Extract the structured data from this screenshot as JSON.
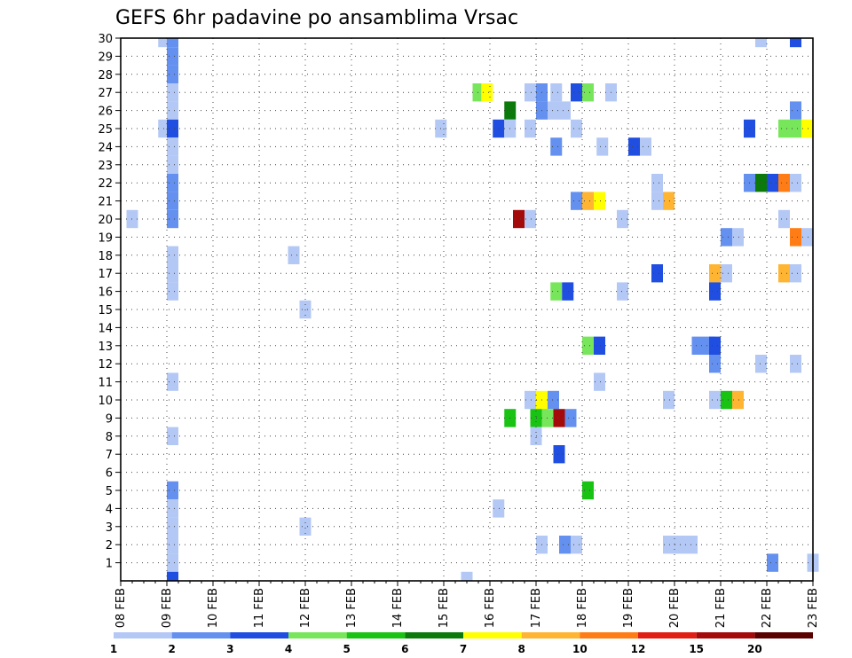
{
  "chart_data": {
    "type": "heatmap",
    "title": "GEFS 6hr padavine po ansamblima Vrsac",
    "xlabel": "",
    "ylabel": "",
    "x_tick_labels": [
      "08 FEB",
      "09 FEB",
      "10 FEB",
      "11 FEB",
      "12 FEB",
      "13 FEB",
      "14 FEB",
      "15 FEB",
      "16 FEB",
      "17 FEB",
      "18 FEB",
      "19 FEB",
      "20 FEB",
      "21 FEB",
      "22 FEB",
      "23 FEB"
    ],
    "y_tick_labels": [
      "1",
      "2",
      "3",
      "4",
      "5",
      "6",
      "7",
      "8",
      "9",
      "10",
      "11",
      "12",
      "13",
      "14",
      "15",
      "16",
      "17",
      "18",
      "19",
      "20",
      "21",
      "22",
      "23",
      "24",
      "25",
      "26",
      "27",
      "28",
      "29",
      "30"
    ],
    "ylim": [
      0,
      30
    ],
    "x_steps_per_day": 4,
    "x_range_steps": [
      0,
      60
    ],
    "grid": true,
    "color_levels": [
      1,
      2,
      3,
      4,
      5,
      6,
      7,
      8,
      10,
      12,
      15,
      20
    ],
    "colors": [
      "#b4c8f5",
      "#6490ef",
      "#1f4ee0",
      "#78e65a",
      "#19c314",
      "#0b7a0b",
      "#ffff00",
      "#ffb432",
      "#ff7d14",
      "#e01e14",
      "#a50a0a",
      "#5a0000"
    ],
    "legend_labels": [
      "1",
      "2",
      "3",
      "4",
      "5",
      "6",
      "7",
      "8",
      "10",
      "12",
      "15",
      "20"
    ],
    "legend_placement": "bottom",
    "cells": [
      {
        "m": 30,
        "t": 3.25,
        "c": 0
      },
      {
        "m": 30,
        "t": 4,
        "c": 1
      },
      {
        "m": 30,
        "t": 55,
        "c": 0
      },
      {
        "m": 30,
        "t": 58,
        "c": 2
      },
      {
        "m": 29,
        "t": 4,
        "c": 1
      },
      {
        "m": 28,
        "t": 4,
        "c": 1
      },
      {
        "m": 27,
        "t": 4,
        "c": 0
      },
      {
        "m": 27,
        "t": 30.5,
        "c": 3
      },
      {
        "m": 27,
        "t": 31.25,
        "c": 6
      },
      {
        "m": 27,
        "t": 35,
        "c": 0
      },
      {
        "m": 27,
        "t": 36,
        "c": 1
      },
      {
        "m": 27,
        "t": 37.25,
        "c": 0
      },
      {
        "m": 27,
        "t": 39,
        "c": 2
      },
      {
        "m": 27,
        "t": 40,
        "c": 3
      },
      {
        "m": 27,
        "t": 42,
        "c": 0
      },
      {
        "m": 26,
        "t": 4,
        "c": 0
      },
      {
        "m": 26,
        "t": 33.25,
        "c": 5
      },
      {
        "m": 26,
        "t": 36,
        "c": 1
      },
      {
        "m": 26,
        "t": 37,
        "c": 0
      },
      {
        "m": 26,
        "t": 38,
        "c": 0
      },
      {
        "m": 26,
        "t": 58,
        "c": 1
      },
      {
        "m": 25,
        "t": 3.25,
        "c": 0
      },
      {
        "m": 25,
        "t": 4,
        "c": 2
      },
      {
        "m": 25,
        "t": 27.25,
        "c": 0
      },
      {
        "m": 25,
        "t": 32.25,
        "c": 2
      },
      {
        "m": 25,
        "t": 33.25,
        "c": 0
      },
      {
        "m": 25,
        "t": 35,
        "c": 0
      },
      {
        "m": 25,
        "t": 39,
        "c": 0
      },
      {
        "m": 25,
        "t": 54,
        "c": 2
      },
      {
        "m": 25,
        "t": 57,
        "c": 3
      },
      {
        "m": 25,
        "t": 58,
        "c": 3
      },
      {
        "m": 25,
        "t": 59,
        "c": 6
      },
      {
        "m": 24,
        "t": 4,
        "c": 0
      },
      {
        "m": 24,
        "t": 37.25,
        "c": 1
      },
      {
        "m": 24,
        "t": 41.25,
        "c": 0
      },
      {
        "m": 24,
        "t": 44,
        "c": 2
      },
      {
        "m": 24,
        "t": 45,
        "c": 0
      },
      {
        "m": 23,
        "t": 4,
        "c": 0
      },
      {
        "m": 22,
        "t": 4,
        "c": 1
      },
      {
        "m": 22,
        "t": 46,
        "c": 0
      },
      {
        "m": 22,
        "t": 54,
        "c": 1
      },
      {
        "m": 22,
        "t": 55,
        "c": 5
      },
      {
        "m": 22,
        "t": 56,
        "c": 2
      },
      {
        "m": 22,
        "t": 57,
        "c": 8
      },
      {
        "m": 22,
        "t": 58,
        "c": 0
      },
      {
        "m": 21,
        "t": 4,
        "c": 1
      },
      {
        "m": 21,
        "t": 39,
        "c": 1
      },
      {
        "m": 21,
        "t": 40,
        "c": 7
      },
      {
        "m": 21,
        "t": 41,
        "c": 6
      },
      {
        "m": 21,
        "t": 46,
        "c": 0
      },
      {
        "m": 21,
        "t": 47,
        "c": 7
      },
      {
        "m": 20,
        "t": 0.5,
        "c": 0
      },
      {
        "m": 20,
        "t": 4,
        "c": 1
      },
      {
        "m": 20,
        "t": 34,
        "c": 10
      },
      {
        "m": 20,
        "t": 35,
        "c": 0
      },
      {
        "m": 20,
        "t": 43,
        "c": 0
      },
      {
        "m": 20,
        "t": 57,
        "c": 0
      },
      {
        "m": 19,
        "t": 52,
        "c": 1
      },
      {
        "m": 19,
        "t": 53,
        "c": 0
      },
      {
        "m": 19,
        "t": 58,
        "c": 8
      },
      {
        "m": 19,
        "t": 59,
        "c": 0
      },
      {
        "m": 18,
        "t": 4,
        "c": 0
      },
      {
        "m": 18,
        "t": 14.5,
        "c": 0
      },
      {
        "m": 17,
        "t": 4,
        "c": 0
      },
      {
        "m": 17,
        "t": 46,
        "c": 2
      },
      {
        "m": 17,
        "t": 51,
        "c": 7
      },
      {
        "m": 17,
        "t": 52,
        "c": 0
      },
      {
        "m": 17,
        "t": 57,
        "c": 7
      },
      {
        "m": 17,
        "t": 58,
        "c": 0
      },
      {
        "m": 16,
        "t": 4,
        "c": 0
      },
      {
        "m": 16,
        "t": 37.25,
        "c": 3
      },
      {
        "m": 16,
        "t": 38.25,
        "c": 2
      },
      {
        "m": 16,
        "t": 43,
        "c": 0
      },
      {
        "m": 16,
        "t": 51,
        "c": 2
      },
      {
        "m": 15,
        "t": 15.5,
        "c": 0
      },
      {
        "m": 13,
        "t": 40,
        "c": 3
      },
      {
        "m": 13,
        "t": 41,
        "c": 2
      },
      {
        "m": 13,
        "t": 49.5,
        "c": 1
      },
      {
        "m": 13,
        "t": 50.5,
        "c": 1
      },
      {
        "m": 13,
        "t": 51,
        "c": 2
      },
      {
        "m": 12,
        "t": 51,
        "c": 1
      },
      {
        "m": 12,
        "t": 55,
        "c": 0
      },
      {
        "m": 12,
        "t": 58,
        "c": 0
      },
      {
        "m": 11,
        "t": 4,
        "c": 0
      },
      {
        "m": 11,
        "t": 41,
        "c": 0
      },
      {
        "m": 10,
        "t": 35,
        "c": 0
      },
      {
        "m": 10,
        "t": 36,
        "c": 6
      },
      {
        "m": 10,
        "t": 37,
        "c": 1
      },
      {
        "m": 10,
        "t": 47,
        "c": 0
      },
      {
        "m": 10,
        "t": 51,
        "c": 0
      },
      {
        "m": 10,
        "t": 52,
        "c": 4
      },
      {
        "m": 10,
        "t": 53,
        "c": 7
      },
      {
        "m": 9,
        "t": 33.25,
        "c": 4
      },
      {
        "m": 9,
        "t": 35.5,
        "c": 4
      },
      {
        "m": 9,
        "t": 36.5,
        "c": 3
      },
      {
        "m": 9,
        "t": 37.5,
        "c": 10
      },
      {
        "m": 9,
        "t": 38.5,
        "c": 1
      },
      {
        "m": 8,
        "t": 4,
        "c": 0
      },
      {
        "m": 8,
        "t": 35.5,
        "c": 0
      },
      {
        "m": 7,
        "t": 37.5,
        "c": 2
      },
      {
        "m": 5,
        "t": 4,
        "c": 1
      },
      {
        "m": 5,
        "t": 40,
        "c": 4
      },
      {
        "m": 4,
        "t": 4,
        "c": 0
      },
      {
        "m": 4,
        "t": 32.25,
        "c": 0
      },
      {
        "m": 3,
        "t": 4,
        "c": 0
      },
      {
        "m": 3,
        "t": 15.5,
        "c": 0
      },
      {
        "m": 2,
        "t": 4,
        "c": 0
      },
      {
        "m": 2,
        "t": 36,
        "c": 0
      },
      {
        "m": 2,
        "t": 38,
        "c": 1
      },
      {
        "m": 2,
        "t": 39,
        "c": 0
      },
      {
        "m": 2,
        "t": 47,
        "c": 0
      },
      {
        "m": 2,
        "t": 48,
        "c": 0
      },
      {
        "m": 2,
        "t": 49,
        "c": 0
      },
      {
        "m": 1,
        "t": 4,
        "c": 0
      },
      {
        "m": 1,
        "t": 56,
        "c": 1
      },
      {
        "m": 1,
        "t": 59.5,
        "c": 0
      },
      {
        "m": 0,
        "t": 4,
        "c": 2
      },
      {
        "m": 0,
        "t": 29.5,
        "c": 0
      }
    ]
  }
}
